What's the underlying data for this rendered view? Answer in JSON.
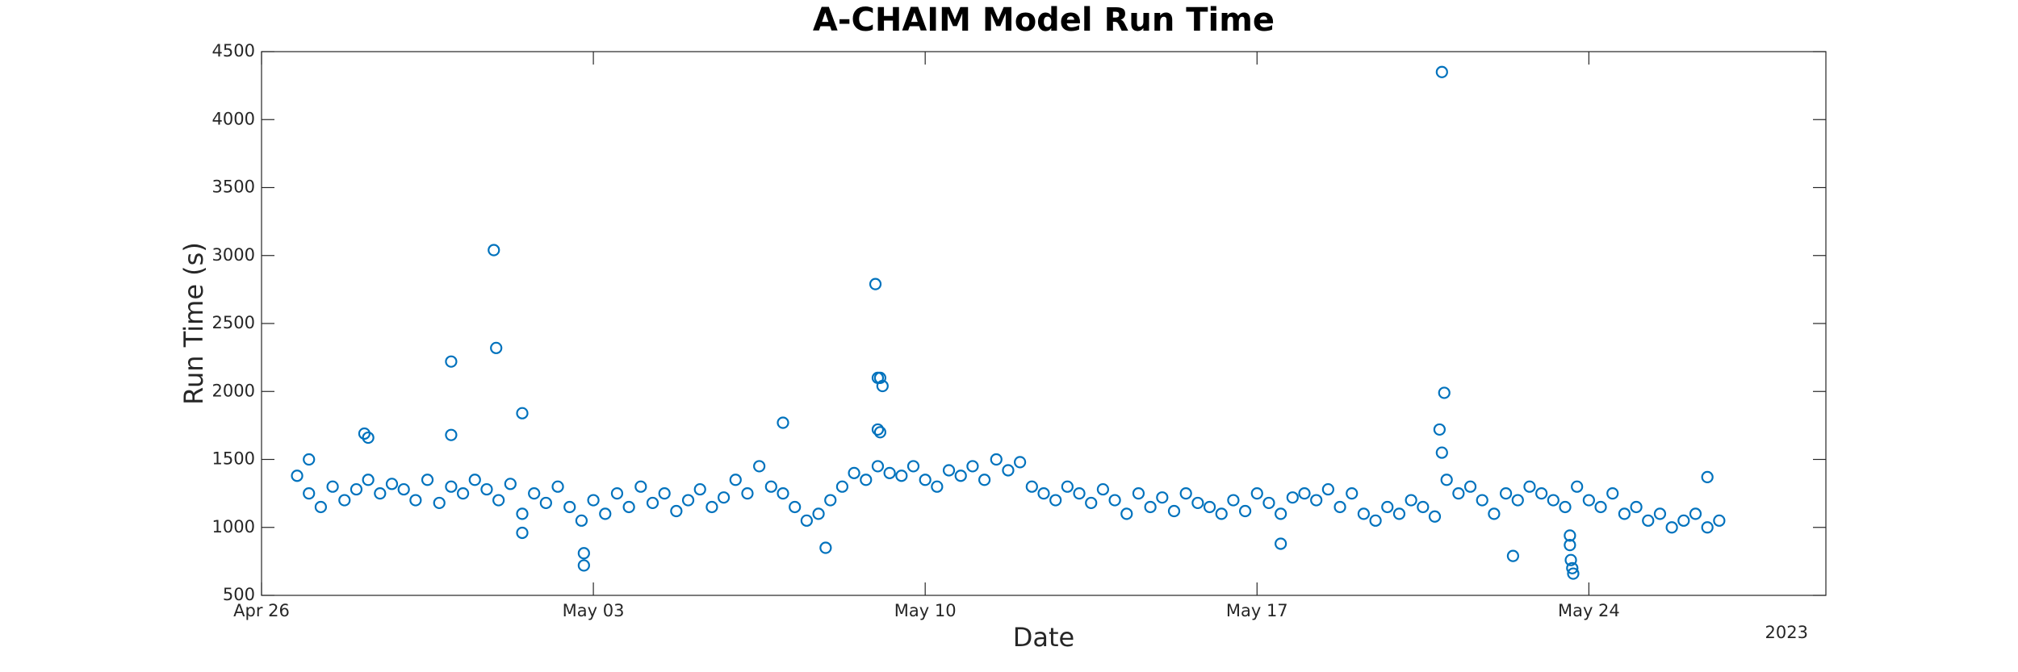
{
  "chart_data": {
    "type": "scatter",
    "title": "A-CHAIM Model Run Time",
    "x_label": "Date",
    "y_label": "Run Time (s)",
    "x_year_label": "2023",
    "color": "#0072bd",
    "xlim": [
      0,
      33
    ],
    "xticks": [
      {
        "value": 0,
        "label": "Apr 26"
      },
      {
        "value": 7,
        "label": "May 03"
      },
      {
        "value": 14,
        "label": "May 10"
      },
      {
        "value": 21,
        "label": "May 17"
      },
      {
        "value": 28,
        "label": "May 24"
      }
    ],
    "ylim": [
      500,
      4500
    ],
    "yticks": [
      500,
      1000,
      1500,
      2000,
      2500,
      3000,
      3500,
      4000,
      4500
    ],
    "x": [
      0.75,
      1.0,
      1.25,
      1.5,
      1.75,
      2.0,
      2.25,
      2.5,
      2.75,
      3.0,
      3.25,
      3.5,
      3.75,
      4.0,
      4.25,
      4.5,
      4.75,
      5.0,
      5.25,
      5.5,
      5.75,
      6.0,
      6.25,
      6.5,
      6.75,
      7.0,
      7.25,
      7.5,
      7.75,
      8.0,
      8.25,
      8.5,
      8.75,
      9.0,
      9.25,
      9.5,
      9.75,
      10.0,
      10.25,
      10.5,
      10.75,
      11.0,
      11.25,
      11.5,
      11.75,
      12.0,
      12.25,
      12.5,
      12.75,
      13.0,
      13.25,
      13.5,
      13.75,
      14.0,
      14.25,
      14.5,
      14.75,
      15.0,
      15.25,
      15.5,
      15.75,
      16.0,
      16.25,
      16.5,
      16.75,
      17.0,
      17.25,
      17.5,
      17.75,
      18.0,
      18.25,
      18.5,
      18.75,
      19.0,
      19.25,
      19.5,
      19.75,
      20.0,
      20.25,
      20.5,
      20.75,
      21.0,
      21.25,
      21.5,
      21.75,
      22.0,
      22.25,
      22.5,
      22.75,
      23.0,
      23.25,
      23.5,
      23.75,
      24.0,
      24.25,
      24.5,
      24.75,
      25.0,
      25.25,
      25.5,
      25.75,
      26.0,
      26.25,
      26.5,
      26.75,
      27.0,
      27.25,
      27.5,
      27.75,
      28.0,
      28.25,
      28.5,
      28.75,
      29.0,
      29.25,
      29.5,
      29.75,
      30.0,
      30.25,
      30.5,
      30.75,
      1.0,
      2.17,
      2.25,
      4.0,
      4.0,
      4.9,
      4.95,
      5.5,
      5.5,
      6.8,
      6.8,
      11.0,
      11.9,
      12.95,
      13.0,
      13.05,
      13.1,
      13.0,
      13.05,
      21.5,
      24.9,
      24.95,
      24.85,
      24.9,
      26.4,
      27.6,
      27.6,
      27.62,
      27.65,
      27.67,
      30.5
    ],
    "values": [
      1380,
      1250,
      1150,
      1300,
      1200,
      1280,
      1350,
      1250,
      1320,
      1280,
      1200,
      1350,
      1180,
      1300,
      1250,
      1350,
      1280,
      1200,
      1320,
      1100,
      1250,
      1180,
      1300,
      1150,
      1050,
      1200,
      1100,
      1250,
      1150,
      1300,
      1180,
      1250,
      1120,
      1200,
      1280,
      1150,
      1220,
      1350,
      1250,
      1450,
      1300,
      1250,
      1150,
      1050,
      1100,
      1200,
      1300,
      1400,
      1350,
      1450,
      1400,
      1380,
      1450,
      1350,
      1300,
      1420,
      1380,
      1450,
      1350,
      1500,
      1420,
      1480,
      1300,
      1250,
      1200,
      1300,
      1250,
      1180,
      1280,
      1200,
      1100,
      1250,
      1150,
      1220,
      1120,
      1250,
      1180,
      1150,
      1100,
      1200,
      1120,
      1250,
      1180,
      1100,
      1220,
      1250,
      1200,
      1280,
      1150,
      1250,
      1100,
      1050,
      1150,
      1100,
      1200,
      1150,
      1080,
      1350,
      1250,
      1300,
      1200,
      1100,
      1250,
      1200,
      1300,
      1250,
      1200,
      1150,
      1300,
      1200,
      1150,
      1250,
      1100,
      1150,
      1050,
      1100,
      1000,
      1050,
      1100,
      1000,
      1050,
      1500,
      1690,
      1660,
      2220,
      1680,
      3040,
      2320,
      1840,
      960,
      720,
      810,
      1770,
      850,
      2790,
      2100,
      2100,
      2040,
      1720,
      1700,
      880,
      4350,
      1990,
      1720,
      1550,
      790,
      940,
      870,
      760,
      700,
      660,
      1370
    ]
  }
}
